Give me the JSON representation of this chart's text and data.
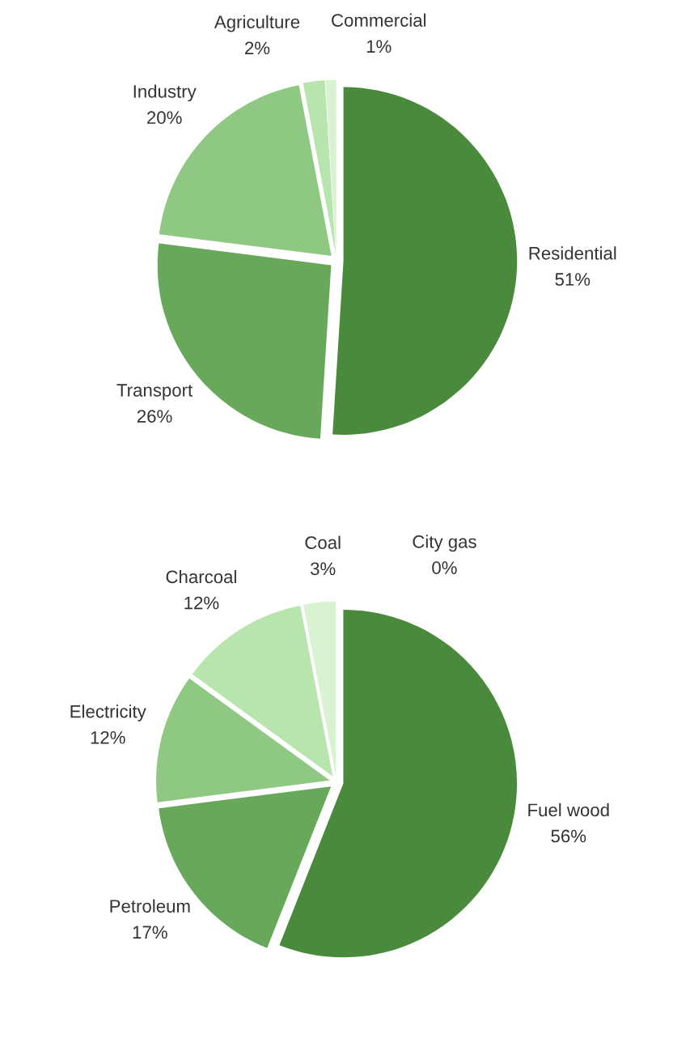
{
  "chart_data": [
    {
      "type": "pie",
      "categories": [
        "Residential",
        "Transport",
        "Industry",
        "Agriculture",
        "Commercial"
      ],
      "values": [
        51,
        26,
        20,
        2,
        1
      ],
      "colors": [
        "#4a8a3c",
        "#68a85a",
        "#8fc882",
        "#b8e4ad",
        "#d9f3d2"
      ],
      "value_labels": [
        "51%",
        "26%",
        "20%",
        "2%",
        "1%"
      ]
    },
    {
      "type": "pie",
      "categories": [
        "Fuel wood",
        "Petroleum",
        "Electricity",
        "Charcoal",
        "Coal",
        "City gas"
      ],
      "values": [
        56,
        17,
        12,
        12,
        3,
        0
      ],
      "colors": [
        "#4a8a3c",
        "#68a85a",
        "#8fc882",
        "#b8e4ad",
        "#d9f3d2",
        "#eaf8e6"
      ],
      "value_labels": [
        "56%",
        "17%",
        "12%",
        "12%",
        "3%",
        "0%"
      ]
    }
  ]
}
